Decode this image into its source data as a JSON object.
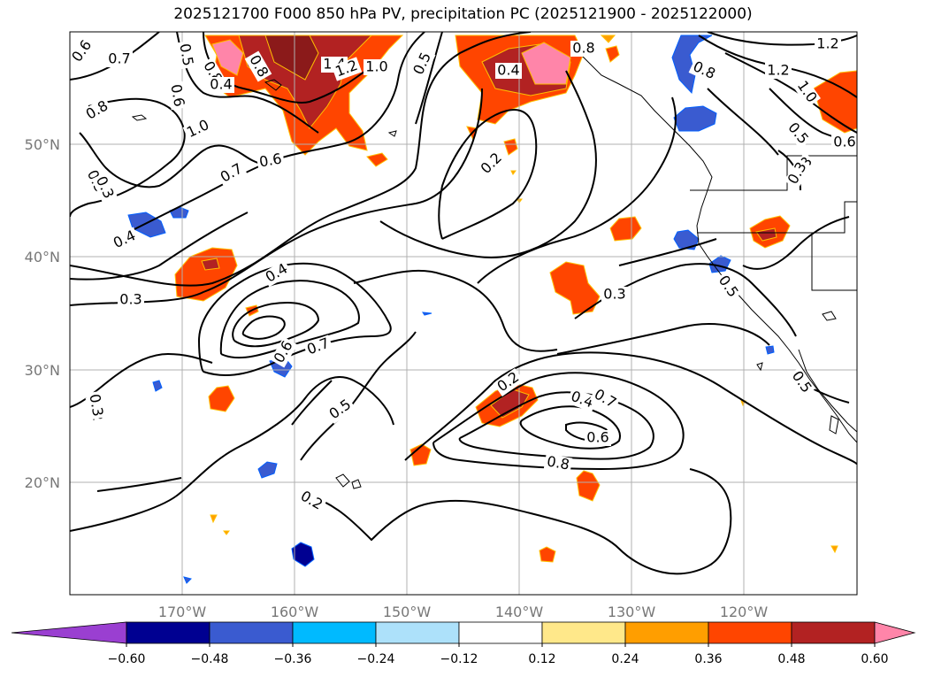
{
  "title": "2025121700 F000 850 hPa PV, precipitation PC (2025121900 - 2025122000)",
  "lat_labels": [
    "50°N",
    "40°N",
    "30°N",
    "20°N"
  ],
  "lon_labels": [
    "170°W",
    "160°W",
    "150°W",
    "140°W",
    "130°W",
    "120°W"
  ],
  "colorbar": {
    "ticks": [
      "−0.60",
      "−0.48",
      "−0.36",
      "−0.24",
      "−0.12",
      "0.12",
      "0.24",
      "0.36",
      "0.48",
      "0.60"
    ],
    "colors": [
      "#9a3fd1",
      "#000091",
      "#3a5bd0",
      "#00baff",
      "#ade1fa",
      "#ffffff",
      "#ffe88a",
      "#ff9e00",
      "#ff4500",
      "#b22222",
      "#ff85a9"
    ]
  },
  "contour_labels": [
    "0.6",
    "0.7",
    "0.5",
    "0.6",
    "0.8",
    "0.8",
    "0.4",
    "0.8",
    "1.4",
    "1.2",
    "1.0",
    "0.5",
    "0.4",
    "0.8",
    "0.8",
    "1.0",
    "1.2",
    "1.2",
    "1.0",
    "0.5",
    "0.6",
    "0.3",
    "0.7",
    "0.6",
    "0.2",
    "0.3",
    "0.4",
    "0.4",
    "0.3",
    "0.3",
    "0.5",
    "0.7",
    "0.6",
    "0.5",
    "0.2",
    "0.2",
    "0.2",
    "0.4",
    "0.7",
    "0.6",
    "0.8",
    "0.5",
    "0.3",
    "0.3",
    "0.3"
  ]
}
